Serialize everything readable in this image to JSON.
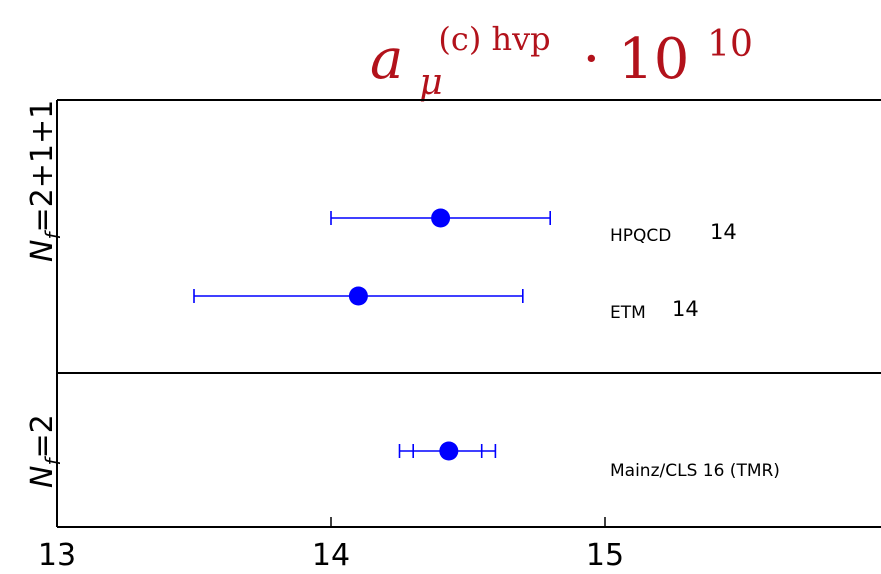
{
  "chart_data": {
    "type": "scatter",
    "title_base": "a",
    "title_sub": "μ",
    "title_sup": "(c) hvp",
    "title_factor": "· 10",
    "title_factor_exp": "10",
    "xlim": [
      13,
      16
    ],
    "xticks": [
      "13",
      "14",
      "15"
    ],
    "grid": false,
    "point_color": "#0000ff",
    "title_color": "#b2121b",
    "groups": [
      {
        "label_main": "N",
        "label_sub": "f",
        "label_eq": "=2+1+1"
      },
      {
        "label_main": "N",
        "label_sub": "f",
        "label_eq": "=2"
      }
    ],
    "points": [
      {
        "collab": "HPQCD",
        "ref": "14",
        "value": 14.4,
        "err_low": 14.0,
        "err_high": 14.8,
        "group": 0
      },
      {
        "collab": "ETM",
        "ref": "14",
        "value": 14.1,
        "err_low": 13.5,
        "err_high": 14.7,
        "group": 0
      },
      {
        "collab": "Mainz/CLS 16 (TMR)",
        "ref": "",
        "value": 14.43,
        "err_low": 14.25,
        "err_high": 14.6,
        "err_inner_low": 14.3,
        "err_inner_high": 14.55,
        "group": 1
      }
    ]
  }
}
